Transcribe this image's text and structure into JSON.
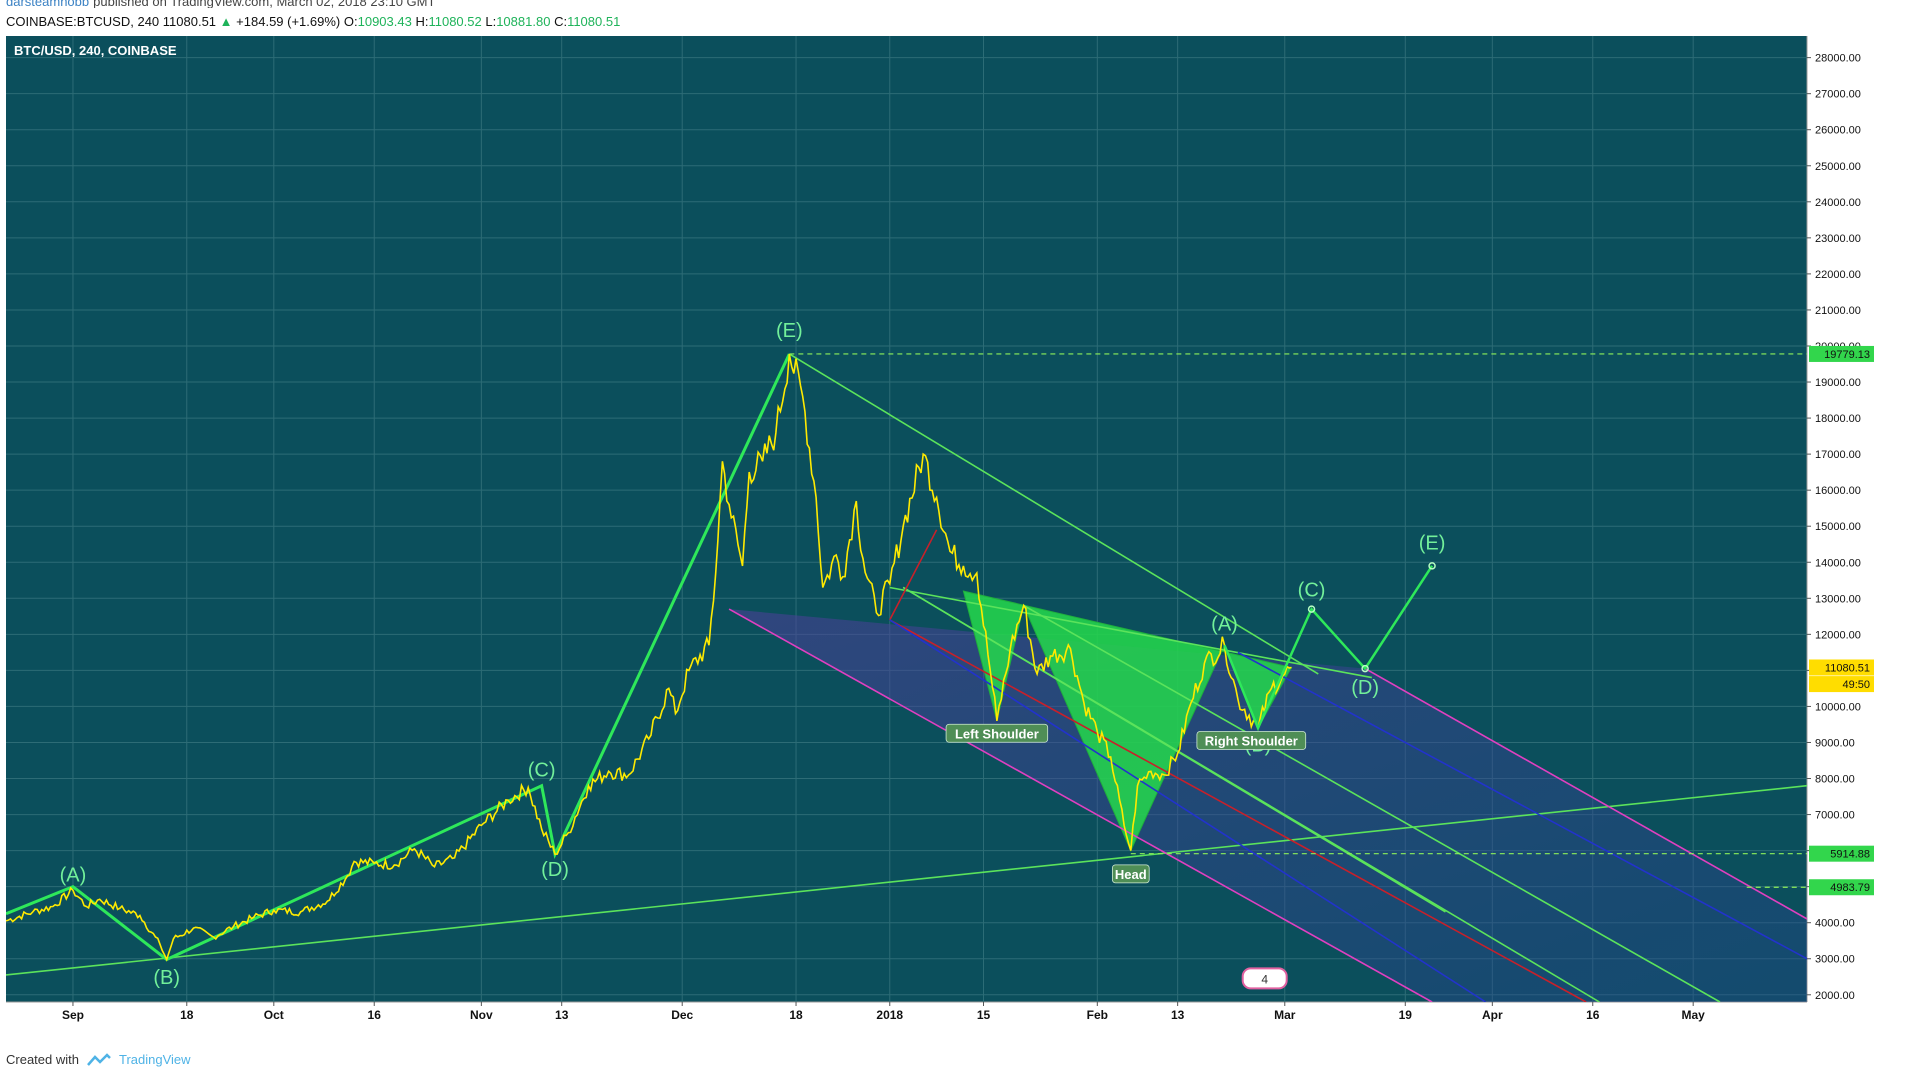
{
  "header": {
    "author": "darsteamhobb",
    "published": "published on TradingView.com, March 02, 2018 23:10 GMT",
    "symbol": "COINBASE:BTCUSD, 240",
    "last": "11080.51",
    "change": "+184.59 (+1.69%)",
    "o_label": "O:",
    "o": "10903.43",
    "h_label": "H:",
    "h": "11080.52",
    "l_label": "L:",
    "l": "10881.80",
    "c_label": "C:",
    "c": "11080.51"
  },
  "footer": {
    "created_with": "Created with",
    "brand": "TradingView"
  },
  "colors": {
    "background": "#0b4f5c",
    "grid": "#2d6c76",
    "price": "#ffea00",
    "wave": "#2ee85a",
    "trend": "#5be35b",
    "hs_fill": "#25d94b",
    "pink": "#e040c0",
    "blue": "#2233cc",
    "red": "#c8202a",
    "axis_bg": "#ffffff"
  },
  "chart_data": {
    "type": "line",
    "title": "BTC/USD, 240, COINBASE",
    "xlabel": "",
    "ylabel": "",
    "grid": true,
    "ylim": [
      1800,
      28600
    ],
    "xlim": [
      "2017-08-22",
      "2018-05-18"
    ],
    "y_ticks": [
      "28000.00",
      "27000.00",
      "26000.00",
      "25000.00",
      "24000.00",
      "23000.00",
      "22000.00",
      "21000.00",
      "20000.00",
      "19000.00",
      "18000.00",
      "17000.00",
      "16000.00",
      "15000.00",
      "14000.00",
      "13000.00",
      "12000.00",
      "11000.00",
      "10000.00",
      "9000.00",
      "8000.00",
      "7000.00",
      "6000.00",
      "5000.00",
      "4000.00",
      "3000.00",
      "2000.00"
    ],
    "x_ticks": [
      {
        "label": "Sep",
        "date": "2017-09-01"
      },
      {
        "label": "18",
        "date": "2017-09-18"
      },
      {
        "label": "Oct",
        "date": "2017-10-01"
      },
      {
        "label": "16",
        "date": "2017-10-16"
      },
      {
        "label": "Nov",
        "date": "2017-11-01"
      },
      {
        "label": "13",
        "date": "2017-11-13"
      },
      {
        "label": "Dec",
        "date": "2017-12-01"
      },
      {
        "label": "18",
        "date": "2017-12-18"
      },
      {
        "label": "2018",
        "date": "2018-01-01"
      },
      {
        "label": "15",
        "date": "2018-01-15"
      },
      {
        "label": "Feb",
        "date": "2018-02-01"
      },
      {
        "label": "13",
        "date": "2018-02-13"
      },
      {
        "label": "Mar",
        "date": "2018-03-01"
      },
      {
        "label": "19",
        "date": "2018-03-19"
      },
      {
        "label": "Apr",
        "date": "2018-04-01"
      },
      {
        "label": "16",
        "date": "2018-04-16"
      },
      {
        "label": "May",
        "date": "2018-05-01"
      }
    ],
    "price_series": {
      "name": "BTCUSD",
      "points": [
        [
          "2017-08-22",
          4050
        ],
        [
          "2017-08-26",
          4300
        ],
        [
          "2017-08-29",
          4450
        ],
        [
          "2017-09-01",
          4900
        ],
        [
          "2017-09-03",
          4450
        ],
        [
          "2017-09-05",
          4650
        ],
        [
          "2017-09-08",
          4400
        ],
        [
          "2017-09-11",
          4200
        ],
        [
          "2017-09-14",
          3400
        ],
        [
          "2017-09-15",
          2980
        ],
        [
          "2017-09-16",
          3550
        ],
        [
          "2017-09-19",
          3850
        ],
        [
          "2017-09-22",
          3600
        ],
        [
          "2017-09-25",
          3900
        ],
        [
          "2017-09-28",
          4150
        ],
        [
          "2017-10-01",
          4350
        ],
        [
          "2017-10-05",
          4300
        ],
        [
          "2017-10-09",
          4600
        ],
        [
          "2017-10-12",
          5300
        ],
        [
          "2017-10-13",
          5700
        ],
        [
          "2017-10-16",
          5650
        ],
        [
          "2017-10-19",
          5600
        ],
        [
          "2017-10-22",
          6050
        ],
        [
          "2017-10-25",
          5550
        ],
        [
          "2017-10-28",
          5800
        ],
        [
          "2017-11-01",
          6700
        ],
        [
          "2017-11-05",
          7400
        ],
        [
          "2017-11-08",
          7750
        ],
        [
          "2017-11-10",
          6600
        ],
        [
          "2017-11-12",
          5900
        ],
        [
          "2017-11-14",
          6500
        ],
        [
          "2017-11-17",
          7800
        ],
        [
          "2017-11-20",
          8200
        ],
        [
          "2017-11-23",
          8100
        ],
        [
          "2017-11-26",
          9100
        ],
        [
          "2017-11-29",
          10500
        ],
        [
          "2017-11-30",
          9800
        ],
        [
          "2017-12-02",
          11000
        ],
        [
          "2017-12-05",
          11700
        ],
        [
          "2017-12-06",
          13700
        ],
        [
          "2017-12-07",
          16800
        ],
        [
          "2017-12-08",
          15600
        ],
        [
          "2017-12-10",
          13900
        ],
        [
          "2017-12-11",
          16500
        ],
        [
          "2017-12-13",
          16800
        ],
        [
          "2017-12-15",
          17600
        ],
        [
          "2017-12-17",
          19779
        ],
        [
          "2017-12-19",
          18600
        ],
        [
          "2017-12-21",
          15800
        ],
        [
          "2017-12-22",
          13300
        ],
        [
          "2017-12-24",
          14200
        ],
        [
          "2017-12-25",
          13600
        ],
        [
          "2017-12-27",
          15700
        ],
        [
          "2017-12-28",
          14100
        ],
        [
          "2017-12-30",
          12600
        ],
        [
          "2018-01-01",
          13400
        ],
        [
          "2018-01-03",
          15000
        ],
        [
          "2018-01-06",
          17000
        ],
        [
          "2018-01-08",
          15800
        ],
        [
          "2018-01-10",
          14300
        ],
        [
          "2018-01-12",
          13900
        ],
        [
          "2018-01-14",
          13700
        ],
        [
          "2018-01-16",
          11000
        ],
        [
          "2018-01-17",
          9600
        ],
        [
          "2018-01-19",
          11600
        ],
        [
          "2018-01-21",
          12800
        ],
        [
          "2018-01-23",
          10900
        ],
        [
          "2018-01-25",
          11400
        ],
        [
          "2018-01-28",
          11600
        ],
        [
          "2018-01-30",
          10100
        ],
        [
          "2018-02-01",
          9300
        ],
        [
          "2018-02-03",
          8600
        ],
        [
          "2018-02-05",
          6700
        ],
        [
          "2018-02-06",
          6000
        ],
        [
          "2018-02-07",
          7800
        ],
        [
          "2018-02-09",
          8200
        ],
        [
          "2018-02-11",
          8100
        ],
        [
          "2018-02-13",
          8700
        ],
        [
          "2018-02-15",
          10100
        ],
        [
          "2018-02-17",
          11200
        ],
        [
          "2018-02-20",
          11700
        ],
        [
          "2018-02-22",
          10200
        ],
        [
          "2018-02-25",
          9400
        ],
        [
          "2018-02-27",
          10500
        ],
        [
          "2018-03-01",
          10900
        ],
        [
          "2018-03-02",
          11080.51
        ]
      ]
    },
    "markers": [
      {
        "label": "19779.13",
        "y": 19779.13
      },
      {
        "label": "11080.51",
        "y": 11080.51
      },
      {
        "label": "49:50",
        "y": 10620
      },
      {
        "label": "5914.88",
        "y": 5914.88
      },
      {
        "label": "4983.79",
        "y": 4983.79
      }
    ],
    "annotations": [
      {
        "text": "(A)",
        "x": "2017-09-01",
        "y": 5150
      },
      {
        "text": "(B)",
        "x": "2017-09-15",
        "y": 2300
      },
      {
        "text": "(C)",
        "x": "2017-11-10",
        "y": 8050
      },
      {
        "text": "(D)",
        "x": "2017-11-12",
        "y": 5300
      },
      {
        "text": "(E)",
        "x": "2017-12-17",
        "y": 20250
      },
      {
        "text": "(A)",
        "x": "2018-02-20",
        "y": 12100
      },
      {
        "text": "(B)",
        "x": "2018-02-25",
        "y": 8750
      },
      {
        "text": "(C)",
        "x": "2018-03-05",
        "y": 13050
      },
      {
        "text": "(D)",
        "x": "2018-03-13",
        "y": 10350
      },
      {
        "text": "(E)",
        "x": "2018-03-23",
        "y": 14350
      },
      {
        "text": "Left Shoulder",
        "x": "2018-01-17",
        "y": 9200,
        "box": true
      },
      {
        "text": "Right Shoulder",
        "x": "2018-02-24",
        "y": 9000,
        "box": true
      },
      {
        "text": "Head",
        "x": "2018-02-06",
        "y": 5300,
        "box": true
      }
    ],
    "wave_path": [
      [
        "2017-08-22",
        4250
      ],
      [
        "2017-09-01",
        5000
      ],
      [
        "2017-09-15",
        2980
      ],
      [
        "2017-11-10",
        7800
      ],
      [
        "2017-11-12",
        5900
      ],
      [
        "2017-12-17",
        19779
      ]
    ],
    "projection_path": [
      [
        "2018-02-20",
        11700
      ],
      [
        "2018-02-25",
        9400
      ],
      [
        "2018-03-05",
        12700
      ],
      [
        "2018-03-13",
        11050
      ],
      [
        "2018-03-23",
        13900
      ]
    ],
    "hs_polygon": [
      [
        "2018-01-12",
        13200
      ],
      [
        "2018-01-17",
        9600
      ],
      [
        "2018-01-21",
        12800
      ],
      [
        "2018-02-06",
        6000
      ],
      [
        "2018-02-20",
        11700
      ],
      [
        "2018-02-25",
        9400
      ],
      [
        "2018-03-02",
        11080
      ]
    ],
    "lines": [
      {
        "kind": "trend",
        "from": [
          "2017-08-22",
          2550
        ],
        "to": [
          "2018-05-18",
          7800
        ]
      },
      {
        "kind": "trend",
        "from": [
          "2017-12-17",
          19779
        ],
        "to": [
          "2018-03-06",
          10900
        ]
      },
      {
        "kind": "trend",
        "from": [
          "2018-01-01",
          13300
        ],
        "to": [
          "2018-03-14",
          10800
        ]
      },
      {
        "kind": "pitch-green",
        "from": [
          "2018-01-03",
          13300
        ],
        "to": [
          "2018-04-17",
          1800
        ]
      },
      {
        "kind": "pitch-green",
        "from": [
          "2018-01-03",
          13300
        ],
        "to": [
          "2018-03-25",
          4300
        ]
      },
      {
        "kind": "pitch-green",
        "from": [
          "2018-01-21",
          12800
        ],
        "to": [
          "2018-05-05",
          1800
        ]
      },
      {
        "kind": "pitch-red",
        "from": [
          "2018-01-01",
          12400
        ],
        "to": [
          "2018-04-15",
          1800
        ]
      },
      {
        "kind": "pitch-red",
        "from": [
          "2018-01-01",
          12400
        ],
        "to": [
          "2018-01-08",
          14900
        ]
      },
      {
        "kind": "pitch-blue",
        "from": [
          "2018-01-01",
          12400
        ],
        "to": [
          "2018-03-31",
          1800
        ]
      },
      {
        "kind": "pitch-blue",
        "from": [
          "2018-02-22",
          11500
        ],
        "to": [
          "2018-05-19",
          2900
        ]
      },
      {
        "kind": "pitch-pink",
        "from": [
          "2017-12-08",
          12700
        ],
        "to": [
          "2018-03-23",
          1800
        ]
      },
      {
        "kind": "pitch-pink",
        "from": [
          "2018-03-13",
          11050
        ],
        "to": [
          "2018-05-19",
          4000
        ]
      },
      {
        "kind": "dashed-h",
        "y": 19779.13,
        "from": "2017-12-17"
      },
      {
        "kind": "dashed-h",
        "y": 5914.88,
        "from": "2018-02-06"
      },
      {
        "kind": "dashed-h",
        "y": 4983.79,
        "from": "2018-05-09"
      }
    ],
    "badge": {
      "text": "4",
      "x": "2018-02-26",
      "y": 2400
    }
  }
}
